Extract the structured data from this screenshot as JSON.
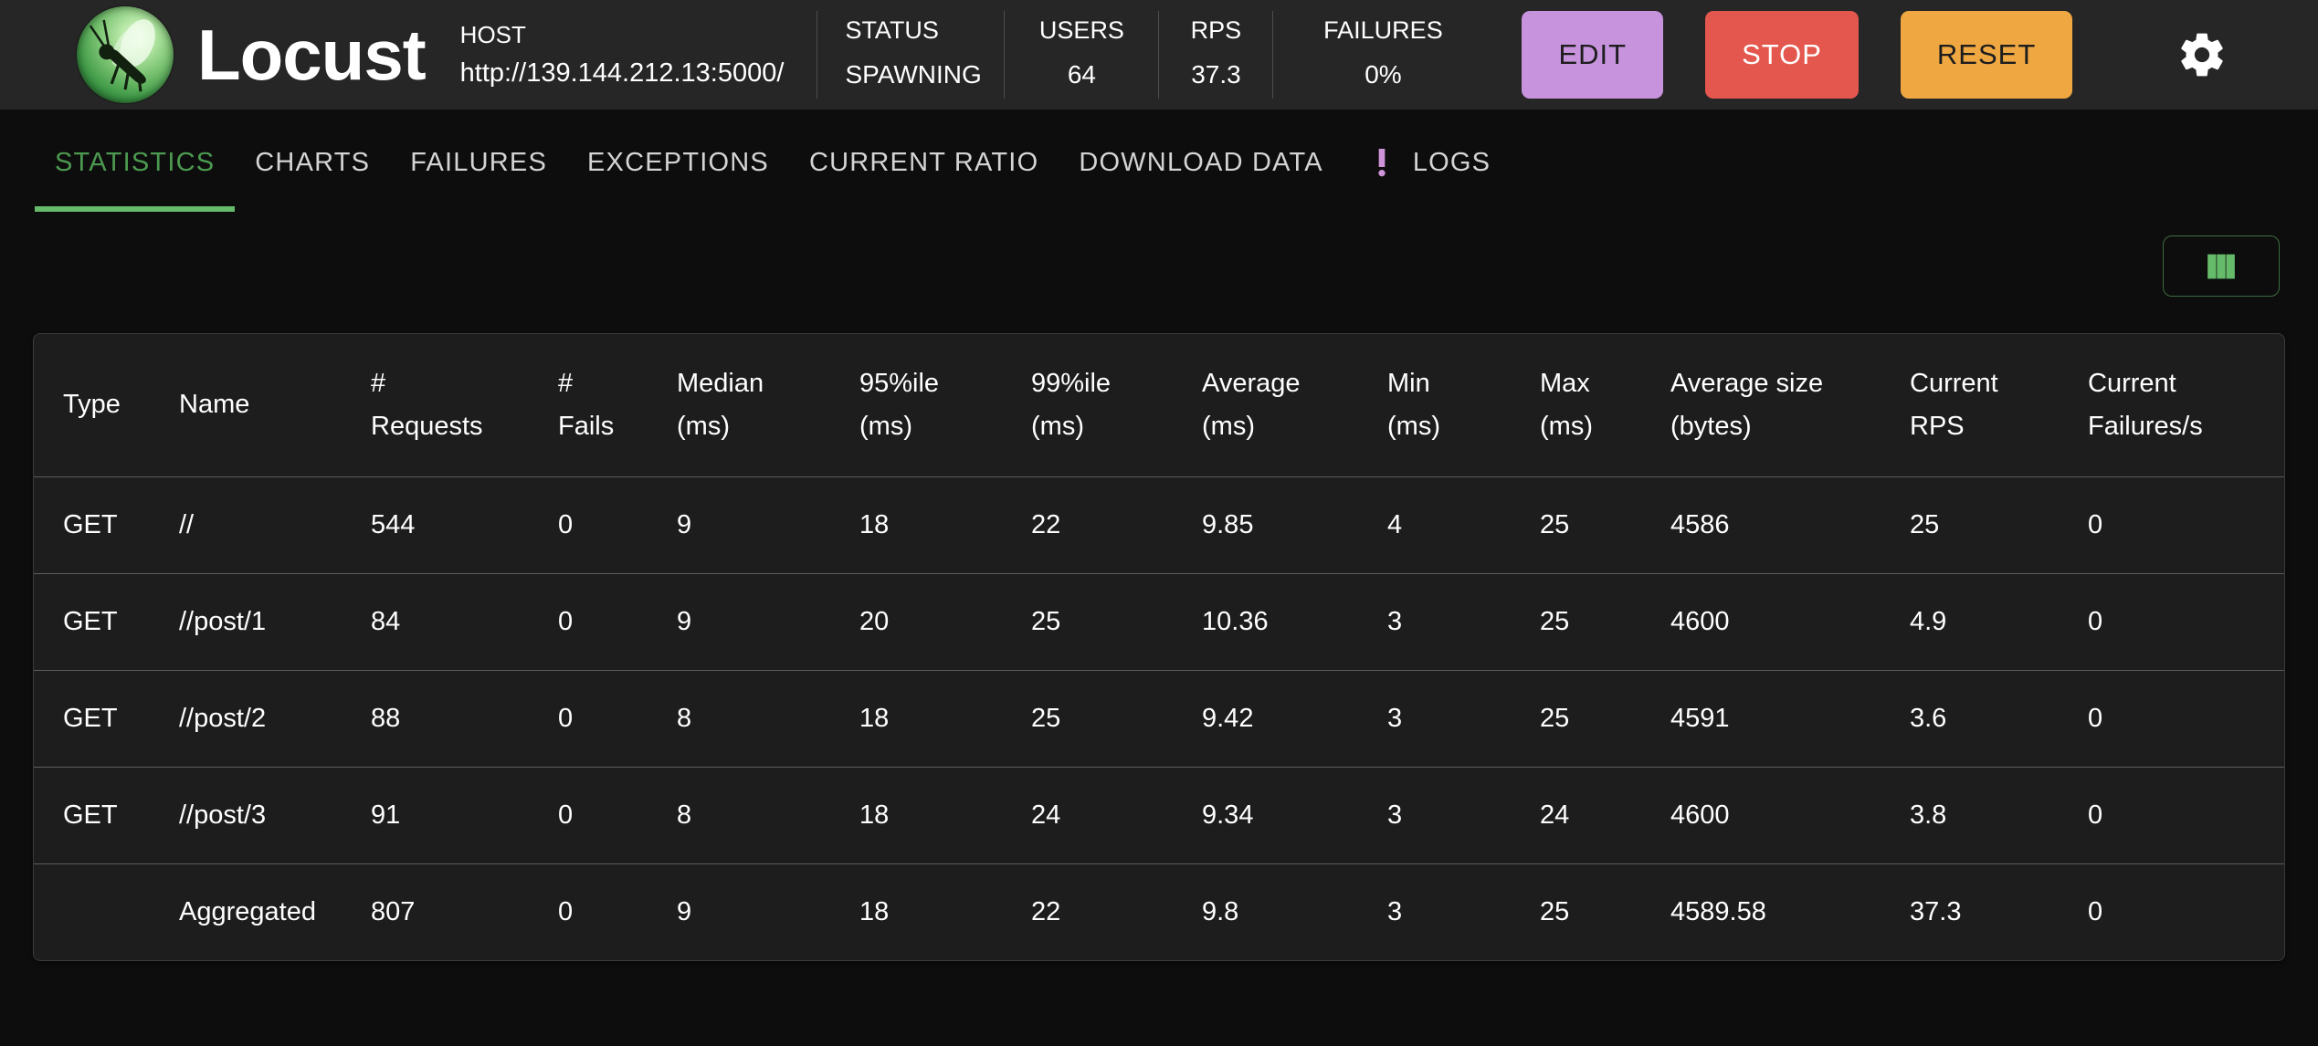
{
  "theme": {
    "c-green": "#66bb6a",
    "c-green-dark": "#4c9a50",
    "c-purple": "#ce93d8",
    "c-edit": "#c793dd",
    "c-stop": "#e4574e",
    "c-reset": "#efa742"
  },
  "header": {
    "brand": "Locust",
    "host": {
      "label": "HOST",
      "url": "http://139.144.212.13:5000/"
    },
    "stats": [
      {
        "label": "STATUS",
        "value": "SPAWNING"
      },
      {
        "label": "USERS",
        "value": "64"
      },
      {
        "label": "RPS",
        "value": "37.3"
      },
      {
        "label": "FAILURES",
        "value": "0%"
      }
    ],
    "buttons": {
      "edit": "EDIT",
      "stop": "STOP",
      "reset": "RESET"
    },
    "icons": {
      "settings": "gear",
      "logo": "locust-orb"
    }
  },
  "tabs": [
    {
      "label": "STATISTICS",
      "active": true
    },
    {
      "label": "CHARTS"
    },
    {
      "label": "FAILURES"
    },
    {
      "label": "EXCEPTIONS"
    },
    {
      "label": "CURRENT RATIO"
    },
    {
      "label": "DOWNLOAD DATA"
    },
    {
      "label": "LOGS",
      "badge": "exclamation-icon"
    }
  ],
  "toolbar": {
    "columns_toggle_icon": "column-bars"
  },
  "table": {
    "columns": [
      {
        "key": "type",
        "lines": [
          "Type",
          ""
        ]
      },
      {
        "key": "name",
        "lines": [
          "Name",
          ""
        ]
      },
      {
        "key": "requests",
        "lines": [
          "#",
          "Requests"
        ]
      },
      {
        "key": "fails",
        "lines": [
          "#",
          "Fails"
        ]
      },
      {
        "key": "median",
        "lines": [
          "Median",
          "(ms)"
        ]
      },
      {
        "key": "p95",
        "lines": [
          "95%ile",
          "(ms)"
        ]
      },
      {
        "key": "p99",
        "lines": [
          "99%ile",
          "(ms)"
        ]
      },
      {
        "key": "average",
        "lines": [
          "Average",
          "(ms)"
        ]
      },
      {
        "key": "min",
        "lines": [
          "Min",
          "(ms)"
        ]
      },
      {
        "key": "max",
        "lines": [
          "Max",
          "(ms)"
        ]
      },
      {
        "key": "avg-size",
        "lines": [
          "Average size",
          "(bytes)"
        ]
      },
      {
        "key": "current-rps",
        "lines": [
          "Current",
          "RPS"
        ]
      },
      {
        "key": "current-failures",
        "lines": [
          "Current",
          "Failures/s"
        ]
      }
    ],
    "rows": [
      [
        "GET",
        "//",
        "544",
        "0",
        "9",
        "18",
        "22",
        "9.85",
        "4",
        "25",
        "4586",
        "25",
        "0"
      ],
      [
        "GET",
        "//post/1",
        "84",
        "0",
        "9",
        "20",
        "25",
        "10.36",
        "3",
        "25",
        "4600",
        "4.9",
        "0"
      ],
      [
        "GET",
        "//post/2",
        "88",
        "0",
        "8",
        "18",
        "25",
        "9.42",
        "3",
        "25",
        "4591",
        "3.6",
        "0"
      ],
      [
        "GET",
        "//post/3",
        "91",
        "0",
        "8",
        "18",
        "24",
        "9.34",
        "3",
        "24",
        "4600",
        "3.8",
        "0"
      ]
    ],
    "aggregated": [
      "",
      "Aggregated",
      "807",
      "0",
      "9",
      "18",
      "22",
      "9.8",
      "3",
      "25",
      "4589.58",
      "37.3",
      "0"
    ]
  }
}
